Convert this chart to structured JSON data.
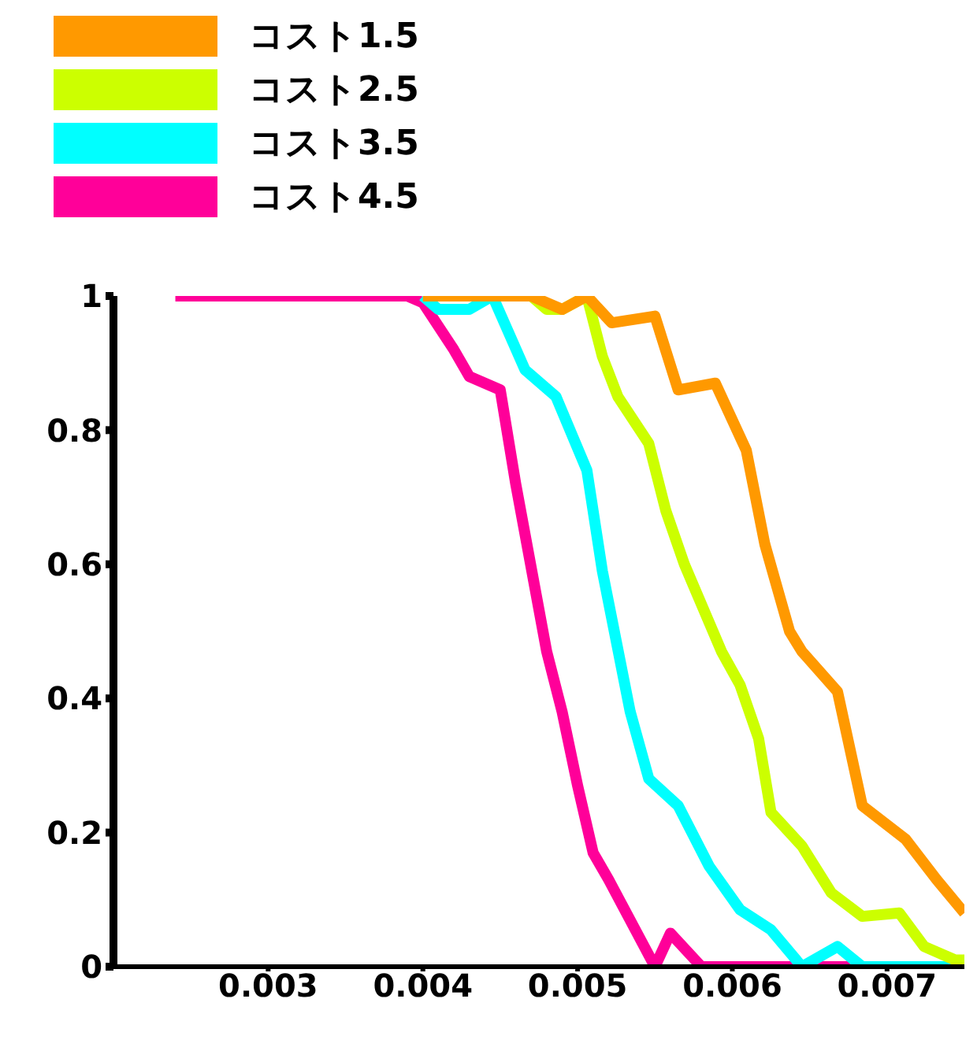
{
  "chart_data": {
    "type": "line",
    "xlim": [
      0.002,
      0.0075
    ],
    "xticks": [
      0.003,
      0.004,
      0.005,
      0.006,
      0.007
    ],
    "ylim": [
      0,
      1
    ],
    "yticks": [
      0,
      0.2,
      0.4,
      0.6,
      0.8,
      1
    ],
    "grid": false,
    "legend": "top left",
    "marker": "none",
    "line_style": "solid",
    "series": [
      {
        "name": "コスト1.5",
        "color": "#ff9900",
        "x": [
          0.004,
          0.0047,
          0.0049,
          0.00506,
          0.00522,
          0.0055,
          0.00565,
          0.00589,
          0.00609,
          0.00621,
          0.00637,
          0.00645,
          0.00668,
          0.00684,
          0.00712,
          0.00732,
          0.0075
        ],
        "values": [
          1,
          1,
          0.98,
          1,
          0.96,
          0.97,
          0.86,
          0.87,
          0.77,
          0.63,
          0.5,
          0.47,
          0.41,
          0.24,
          0.19,
          0.13,
          0.08
        ]
      },
      {
        "name": "コスト2.5",
        "color": "#ccff00",
        "x": [
          0.0041,
          0.0047,
          0.0048,
          0.0049,
          0.00506,
          0.00516,
          0.00526,
          0.00546,
          0.00557,
          0.00569,
          0.00593,
          0.00605,
          0.00617,
          0.00625,
          0.00645,
          0.00664,
          0.00684,
          0.00708,
          0.00724,
          0.00744,
          0.0075
        ],
        "values": [
          1,
          1,
          0.98,
          0.98,
          1,
          0.91,
          0.85,
          0.78,
          0.68,
          0.6,
          0.47,
          0.42,
          0.34,
          0.23,
          0.18,
          0.11,
          0.075,
          0.08,
          0.03,
          0.01,
          0.01
        ]
      },
      {
        "name": "コスト3.5",
        "color": "#00ffff",
        "x": [
          0.004,
          0.0041,
          0.0043,
          0.00445,
          0.00466,
          0.00486,
          0.00506,
          0.00516,
          0.00534,
          0.00546,
          0.00565,
          0.00585,
          0.00605,
          0.00625,
          0.00645,
          0.00668,
          0.00684,
          0.0075
        ],
        "values": [
          1,
          0.98,
          0.98,
          1,
          0.89,
          0.85,
          0.74,
          0.59,
          0.38,
          0.28,
          0.24,
          0.15,
          0.085,
          0.055,
          0,
          0.03,
          0,
          0
        ]
      },
      {
        "name": "コスト4.5",
        "color": "#ff0099",
        "x": [
          0.0024,
          0.0039,
          0.004,
          0.0042,
          0.0043,
          0.0045,
          0.0046,
          0.0048,
          0.0049,
          0.005,
          0.0051,
          0.0052,
          0.0055,
          0.0056,
          0.0058,
          0.0075
        ],
        "values": [
          1,
          1,
          0.99,
          0.92,
          0.88,
          0.86,
          0.72,
          0.47,
          0.38,
          0.27,
          0.17,
          0.13,
          0,
          0.05,
          0,
          0
        ]
      }
    ]
  }
}
